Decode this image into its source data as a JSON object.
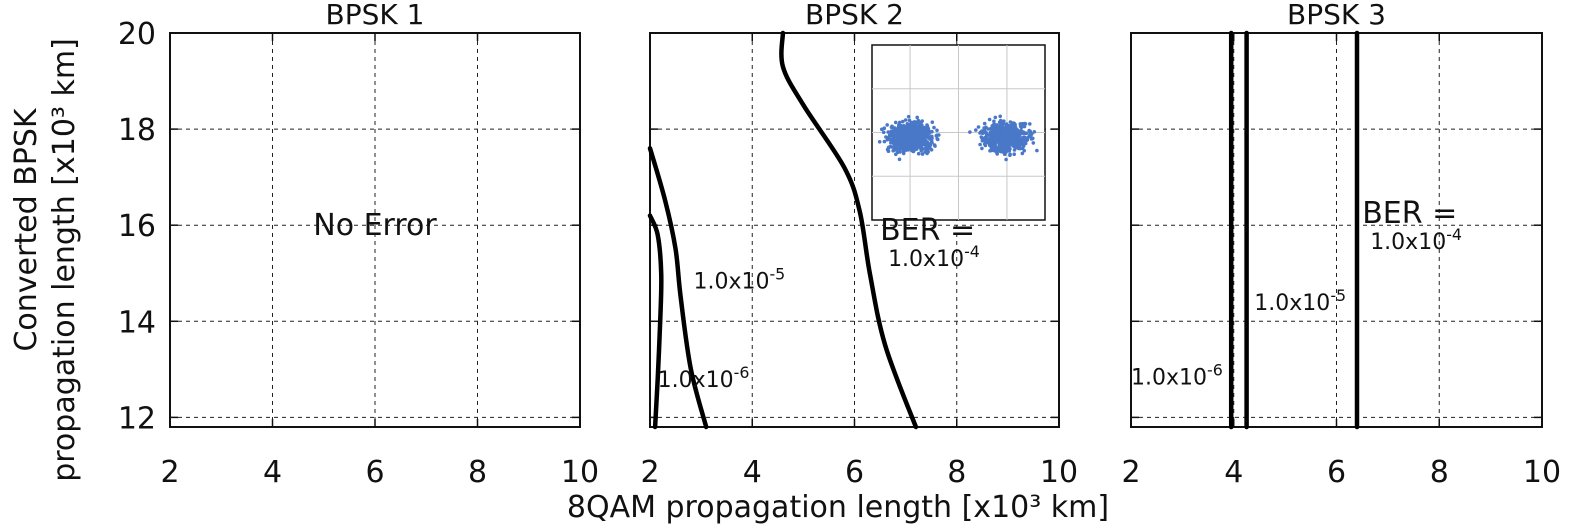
{
  "chart_data": [
    {
      "type": "line",
      "title": "BPSK 1",
      "xlim": [
        2,
        10
      ],
      "ylim": [
        11.8,
        20
      ],
      "xticks": [
        2,
        4,
        6,
        8,
        10
      ],
      "yticks": [
        12,
        14,
        16,
        18,
        20
      ],
      "grid": true,
      "series": [],
      "annotations": [
        {
          "text": "No Error",
          "x": 6,
          "y": 16
        }
      ]
    },
    {
      "type": "line",
      "title": "BPSK 2",
      "xlim": [
        2,
        10
      ],
      "ylim": [
        11.8,
        20
      ],
      "xticks": [
        2,
        4,
        6,
        8,
        10
      ],
      "yticks": [
        12,
        14,
        16,
        18,
        20
      ],
      "grid": true,
      "series": [
        {
          "name": "1.0x10^-6",
          "points": [
            [
              2.1,
              11.8
            ],
            [
              2.15,
              12.8
            ],
            [
              2.2,
              14.0
            ],
            [
              2.22,
              15.0
            ],
            [
              2.15,
              15.8
            ],
            [
              2.0,
              16.2
            ]
          ]
        },
        {
          "name": "1.0x10^-5",
          "points": [
            [
              3.1,
              11.8
            ],
            [
              2.8,
              13.0
            ],
            [
              2.6,
              14.5
            ],
            [
              2.5,
              15.5
            ],
            [
              2.3,
              16.5
            ],
            [
              2.0,
              17.6
            ]
          ]
        },
        {
          "name": "1.0x10^-4",
          "points": [
            [
              7.2,
              11.8
            ],
            [
              6.6,
              13.5
            ],
            [
              6.3,
              15.0
            ],
            [
              6.1,
              16.3
            ],
            [
              5.8,
              17.2
            ],
            [
              5.0,
              18.5
            ],
            [
              4.6,
              19.3
            ],
            [
              4.6,
              20.0
            ]
          ]
        }
      ],
      "annotations": [
        {
          "base": "1.0x10",
          "exp": "-6",
          "x": 2.15,
          "y": 12.8
        },
        {
          "base": "1.0x10",
          "exp": "-5",
          "x": 2.85,
          "y": 14.85
        },
        {
          "prefix": "BER =",
          "base": "1.0x10",
          "exp": "-4",
          "x": 6.5,
          "y": 15.4
        }
      ],
      "inset": {
        "description": "BPSK constellation",
        "clusters": [
          {
            "x": -1,
            "y": 0,
            "color": "#4a78c8"
          },
          {
            "x": 1,
            "y": 0,
            "color": "#4a78c8"
          }
        ]
      }
    },
    {
      "type": "line",
      "title": "BPSK 3",
      "xlim": [
        2,
        10
      ],
      "ylim": [
        11.8,
        20
      ],
      "xticks": [
        2,
        4,
        6,
        8,
        10
      ],
      "yticks": [
        12,
        14,
        16,
        18,
        20
      ],
      "grid": true,
      "series": [
        {
          "name": "1.0x10^-6",
          "points": [
            [
              3.95,
              11.8
            ],
            [
              3.95,
              20.0
            ]
          ]
        },
        {
          "name": "1.0x10^-5",
          "points": [
            [
              4.25,
              11.8
            ],
            [
              4.25,
              20.0
            ]
          ]
        },
        {
          "name": "1.0x10^-4",
          "points": [
            [
              6.4,
              11.8
            ],
            [
              6.4,
              20.0
            ]
          ]
        }
      ],
      "annotations": [
        {
          "base": "1.0x10",
          "exp": "-6",
          "x": 2.0,
          "y": 12.85
        },
        {
          "base": "1.0x10",
          "exp": "-5",
          "x": 4.4,
          "y": 14.4
        },
        {
          "prefix": "BER =",
          "base": "1.0x10",
          "exp": "-4",
          "x": 6.5,
          "y": 15.75
        }
      ]
    }
  ],
  "axes": {
    "xlabel": "8QAM propagation length [x10³ km]",
    "ylabel_line1": "Converted BPSK",
    "ylabel_line2": "propagation length [x10³ km]"
  }
}
